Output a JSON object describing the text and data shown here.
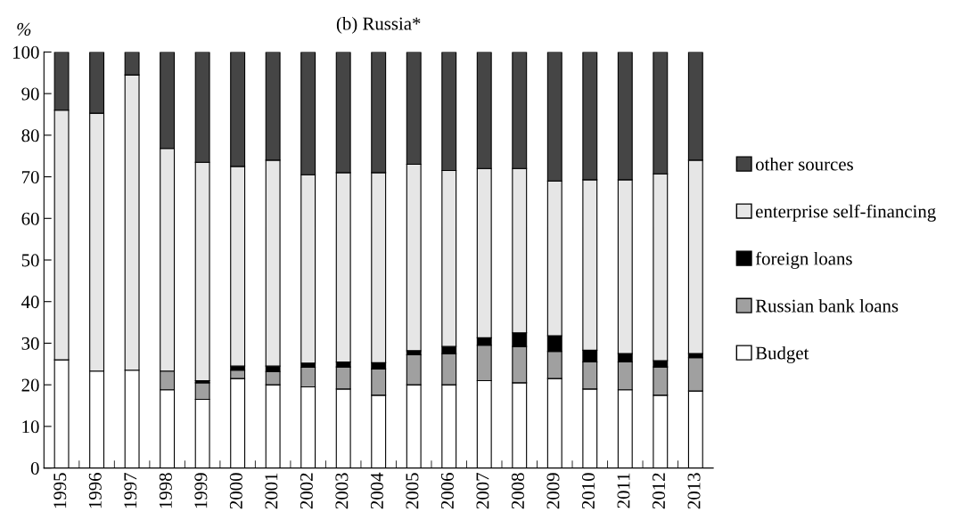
{
  "chart_data": {
    "type": "bar",
    "title": "(b) Russia*",
    "ylabel": "%",
    "stacked": true,
    "categories": [
      "1995",
      "1996",
      "1997",
      "1998",
      "1999",
      "2000",
      "2001",
      "2002",
      "2003",
      "2004",
      "2005",
      "2006",
      "2007",
      "2008",
      "2009",
      "2010",
      "2011",
      "2012",
      "2013"
    ],
    "series": [
      {
        "name": "Budget",
        "color": "#ffffff",
        "values": [
          26,
          23.3,
          23.5,
          18.8,
          16.5,
          21.5,
          20,
          19.5,
          19,
          17.5,
          20,
          20,
          21,
          20.5,
          21.5,
          19,
          18.8,
          17.5,
          18.5
        ]
      },
      {
        "name": "Russian bank loans",
        "color": "#a0a0a0",
        "values": [
          null,
          null,
          null,
          4.5,
          4,
          2,
          3.2,
          4.7,
          5.3,
          6.3,
          7.2,
          7.5,
          8.5,
          8.7,
          6.5,
          6.5,
          6.7,
          6.8,
          8
        ]
      },
      {
        "name": "foreign loans",
        "color": "#000000",
        "values": [
          null,
          null,
          null,
          null,
          0.5,
          1,
          1.3,
          1,
          1.2,
          1.5,
          1,
          1.7,
          1.8,
          3.3,
          3.8,
          2.8,
          2,
          1.5,
          1
        ]
      },
      {
        "name": "enterprise self-financing",
        "color": "#e6e6e6",
        "values": [
          60,
          62,
          71,
          53.5,
          52.5,
          48,
          49.5,
          45.3,
          45.5,
          45.7,
          44.8,
          42.3,
          40.7,
          39.5,
          37.2,
          41,
          41.8,
          44.9,
          46.5
        ]
      },
      {
        "name": "other sources",
        "color": "#454545",
        "values": [
          14,
          14.7,
          5.5,
          23.2,
          26.5,
          27.5,
          26,
          29.5,
          29,
          29,
          27,
          28.5,
          28,
          28,
          31,
          30.7,
          30.7,
          29.3,
          26
        ]
      }
    ],
    "ylim": [
      0,
      100
    ],
    "yticks": [
      0,
      10,
      20,
      30,
      40,
      50,
      60,
      70,
      80,
      90,
      100
    ],
    "grid": false,
    "legend": "right"
  }
}
